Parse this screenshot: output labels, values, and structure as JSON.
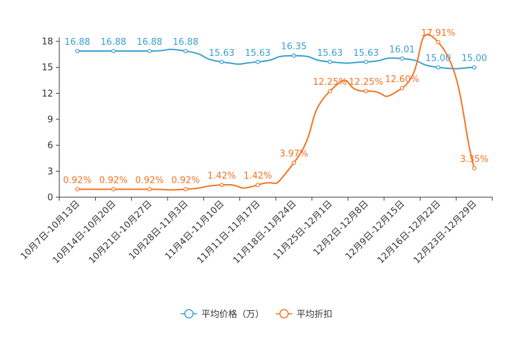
{
  "chart_data": {
    "type": "line",
    "categories": [
      "10月7日-10月13日",
      "10月14日-10月20日",
      "10月21日-10月27日",
      "10月28日-11月3日",
      "11月4日-11月10日",
      "11月11日-11月17日",
      "11月18日-11月24日",
      "11月25日-12月1日",
      "12月2日-12月8日",
      "12月9日-12月15日",
      "12月16日-12月22日",
      "12月23日-12月29日"
    ],
    "series": [
      {
        "name": "平均价格（万）",
        "color": "#3a9fd1",
        "values": [
          16.88,
          16.88,
          16.88,
          16.88,
          15.63,
          15.63,
          16.35,
          15.63,
          15.63,
          16.01,
          15.0,
          15.0
        ],
        "labels": [
          "16.88",
          "16.88",
          "16.88",
          "16.88",
          "15.63",
          "15.63",
          "16.35",
          "15.63",
          "15.63",
          "16.01",
          "15.00",
          "15.00"
        ]
      },
      {
        "name": "平均折扣",
        "color": "#f37321",
        "values": [
          0.92,
          0.92,
          0.92,
          0.92,
          1.42,
          1.42,
          3.97,
          12.25,
          12.25,
          12.6,
          17.91,
          3.35
        ],
        "labels": [
          "0.92%",
          "0.92%",
          "0.92%",
          "0.92%",
          "1.42%",
          "1.42%",
          "3.97%",
          "12.25%",
          "12.25%",
          "12.60%",
          "17.91%",
          "3.35%"
        ]
      }
    ],
    "ylim": [
      0,
      18
    ],
    "yticks": [
      0,
      3,
      6,
      9,
      12,
      15,
      18
    ],
    "title": "",
    "xlabel": "",
    "ylabel": "",
    "legend": "bottom-center"
  }
}
